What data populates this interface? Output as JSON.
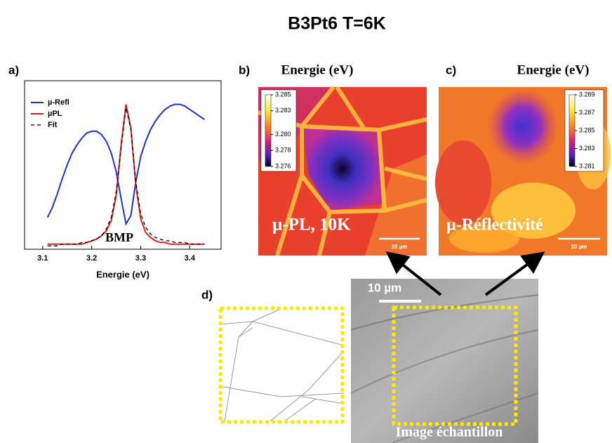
{
  "title": "B3Pt6  T=6K",
  "chart_data": {
    "type": "line",
    "panel_label": "a)",
    "xlabel": "Energie (eV)",
    "annotation": "BMP",
    "xlim": [
      3.063,
      3.464
    ],
    "ylim": [
      0,
      1
    ],
    "xticks": [
      3.1,
      3.2,
      3.3,
      3.4
    ],
    "x": [
      3.11,
      3.12,
      3.13,
      3.14,
      3.15,
      3.16,
      3.17,
      3.18,
      3.19,
      3.2,
      3.21,
      3.22,
      3.23,
      3.24,
      3.25,
      3.26,
      3.27,
      3.28,
      3.29,
      3.3,
      3.31,
      3.32,
      3.33,
      3.34,
      3.35,
      3.36,
      3.37,
      3.38,
      3.39,
      3.4,
      3.41,
      3.42,
      3.43
    ],
    "series": [
      {
        "name": "µ-Refl",
        "color": "#1f2fd6",
        "dash": false,
        "values": [
          0.19,
          0.25,
          0.33,
          0.42,
          0.5,
          0.57,
          0.62,
          0.66,
          0.69,
          0.7,
          0.7,
          0.68,
          0.64,
          0.57,
          0.46,
          0.3,
          0.15,
          0.2,
          0.4,
          0.55,
          0.64,
          0.71,
          0.76,
          0.8,
          0.83,
          0.85,
          0.86,
          0.86,
          0.85,
          0.83,
          0.81,
          0.79,
          0.77
        ]
      },
      {
        "name": "µPL",
        "color": "#e02020",
        "dash": false,
        "values": [
          0.03,
          0.03,
          0.03,
          0.03,
          0.03,
          0.03,
          0.03,
          0.03,
          0.04,
          0.05,
          0.06,
          0.08,
          0.11,
          0.17,
          0.32,
          0.62,
          0.86,
          0.72,
          0.38,
          0.18,
          0.1,
          0.07,
          0.05,
          0.04,
          0.04,
          0.03,
          0.03,
          0.03,
          0.03,
          0.03,
          0.03,
          0.03,
          0.03
        ]
      },
      {
        "name": "Fit",
        "color": "#000000",
        "dash": true,
        "values": [
          0.02,
          0.02,
          0.02,
          0.03,
          0.03,
          0.03,
          0.03,
          0.04,
          0.04,
          0.05,
          0.06,
          0.08,
          0.12,
          0.19,
          0.34,
          0.6,
          0.84,
          0.71,
          0.4,
          0.21,
          0.13,
          0.09,
          0.07,
          0.06,
          0.05,
          0.05,
          0.04,
          0.04,
          0.04,
          0.03,
          0.03,
          0.03,
          0.03
        ]
      }
    ]
  },
  "panel_b": {
    "label": "b)",
    "title": "Energie (eV)",
    "overlay": "µ-PL, 10K",
    "scalebar": "10 µm",
    "colorbar": [
      3.285,
      3.283,
      {
        "value": 3.28,
        "label": "3.280"
      },
      3.278,
      3.276
    ]
  },
  "panel_c": {
    "label": "c)",
    "title": "Energie (eV)",
    "overlay": "µ-Réflectivité",
    "scalebar": "10 µm",
    "colorbar": [
      3.289,
      3.287,
      3.285,
      3.283,
      3.281
    ]
  },
  "panel_d": {
    "label": "d)",
    "scalebar": "10 µm",
    "caption": "Image échantillon"
  }
}
